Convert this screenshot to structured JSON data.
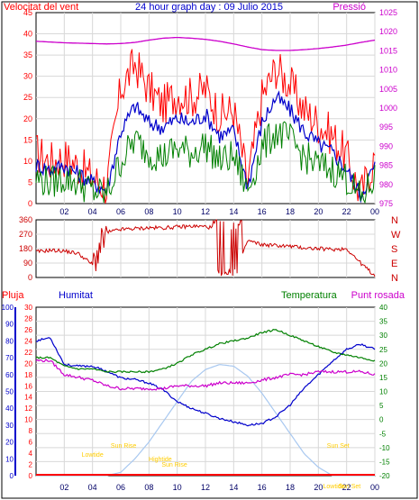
{
  "chart_data": [
    {
      "type": "line",
      "title": "24 hour graph day : 09 Julio 2015",
      "left_label": "Velocitat del vent",
      "right_label": "Pressió",
      "x_ticks": [
        "02",
        "04",
        "06",
        "08",
        "10",
        "12",
        "14",
        "16",
        "18",
        "20",
        "22",
        "00"
      ],
      "ylim_left": [
        0,
        45
      ],
      "yticks_left": [
        "0",
        "5",
        "10",
        "15",
        "20",
        "25",
        "30",
        "35",
        "40",
        "45"
      ],
      "ylim_right": [
        975,
        1025
      ],
      "yticks_right": [
        "975",
        "980",
        "985",
        "990",
        "995",
        "1000",
        "1005",
        "1010",
        "1015",
        "1020",
        "1025"
      ],
      "grid": true,
      "x_hours": [
        0,
        1,
        2,
        3,
        4,
        5,
        6,
        7,
        8,
        9,
        10,
        11,
        12,
        13,
        14,
        15,
        16,
        17,
        18,
        19,
        20,
        21,
        22,
        23,
        24
      ],
      "series": [
        {
          "key": "gust",
          "color": "#ff0000",
          "values": [
            12,
            10,
            11,
            9,
            6,
            4,
            27,
            33,
            27,
            23,
            26,
            25,
            27,
            21,
            22,
            5,
            25,
            32,
            28,
            22,
            19,
            16,
            11,
            2,
            11
          ]
        },
        {
          "key": "avg",
          "color": "#0000cc",
          "values": [
            9,
            8,
            9,
            7,
            5,
            3,
            17,
            23,
            19,
            18,
            20,
            19,
            21,
            16,
            17,
            4,
            19,
            25,
            22,
            17,
            14,
            12,
            8,
            2,
            9
          ]
        },
        {
          "key": "wind",
          "color": "#008000",
          "values": [
            6,
            5,
            6,
            5,
            3,
            2,
            10,
            15,
            12,
            11,
            13,
            12,
            14,
            10,
            11,
            3,
            13,
            17,
            15,
            11,
            9,
            8,
            6,
            1,
            6
          ]
        },
        {
          "key": "pressure",
          "color": "#cc00cc",
          "axis": "right",
          "values": [
            1017.5,
            1017.3,
            1017.1,
            1017.0,
            1016.9,
            1016.8,
            1016.9,
            1017.2,
            1017.8,
            1018.3,
            1018.5,
            1018.3,
            1018.0,
            1017.5,
            1016.8,
            1016.0,
            1015.3,
            1015.1,
            1015.1,
            1015.3,
            1015.6,
            1016.0,
            1016.5,
            1017.2,
            1017.8
          ]
        }
      ]
    },
    {
      "type": "line",
      "title": "",
      "ylim": [
        0,
        360
      ],
      "yticks": [
        "0",
        "90",
        "180",
        "270",
        "360"
      ],
      "compass": [
        "N",
        "W",
        "S",
        "E",
        "N"
      ],
      "x_hours": [
        0,
        1,
        2,
        3,
        4,
        5,
        6,
        7,
        8,
        9,
        10,
        11,
        12,
        13,
        14,
        15,
        16,
        17,
        18,
        19,
        20,
        21,
        22,
        23,
        24
      ],
      "series": [
        {
          "key": "direction",
          "color": "#cc0000",
          "values": [
            160,
            170,
            165,
            150,
            80,
            280,
            300,
            305,
            310,
            310,
            315,
            320,
            318,
            300,
            20,
            230,
            205,
            200,
            195,
            185,
            180,
            175,
            180,
            90,
            10
          ]
        }
      ]
    },
    {
      "type": "line",
      "title": "",
      "labels": {
        "rain": "Pluja",
        "humidity": "Humitat",
        "temperature": "Temperatura",
        "dewpoint": "Punt rosada"
      },
      "yticks_rain": [
        "0",
        "2",
        "4",
        "6",
        "8",
        "10",
        "12",
        "14",
        "16",
        "18",
        "20",
        "22",
        "24",
        "26",
        "28",
        "30"
      ],
      "yticks_humidity": [
        "0",
        "10",
        "20",
        "30",
        "40",
        "50",
        "60",
        "70",
        "80",
        "90",
        "100"
      ],
      "yticks_temperature": [
        "-20",
        "-15",
        "-10",
        "-5",
        "0",
        "5",
        "10",
        "15",
        "20",
        "25",
        "30",
        "35",
        "40"
      ],
      "ylim_rain": [
        0,
        30
      ],
      "ylim_humidity": [
        0,
        100
      ],
      "ylim_temperature": [
        -20,
        40
      ],
      "x_hours": [
        0,
        1,
        2,
        3,
        4,
        5,
        6,
        7,
        8,
        9,
        10,
        11,
        12,
        13,
        14,
        15,
        16,
        17,
        18,
        19,
        20,
        21,
        22,
        23,
        24
      ],
      "series": [
        {
          "key": "humidity",
          "color": "#0000cc",
          "axis": "humidity",
          "values": [
            80,
            82,
            66,
            65,
            65,
            62,
            58,
            57,
            55,
            51,
            44,
            40,
            37,
            34,
            32,
            30,
            31,
            35,
            42,
            52,
            60,
            68,
            75,
            78,
            75
          ]
        },
        {
          "key": "temperature",
          "color": "#008000",
          "axis": "temperature",
          "values": [
            22,
            22,
            19,
            18,
            18,
            17,
            17,
            17,
            17,
            18,
            20,
            23,
            25,
            27,
            28,
            29,
            31,
            32,
            30,
            28,
            26,
            24,
            23,
            22,
            21
          ]
        },
        {
          "key": "dewpoint",
          "color": "#cc00cc",
          "axis": "temperature",
          "values": [
            21,
            21,
            16,
            15,
            14,
            12,
            11,
            11,
            11,
            11,
            12,
            12,
            12,
            13,
            13,
            13,
            14,
            15,
            16,
            16,
            17,
            17,
            17,
            17,
            16
          ]
        },
        {
          "key": "solar",
          "color": "#a8c8f0",
          "axis": "humidity",
          "values": [
            0,
            0,
            0,
            0,
            0,
            0,
            2,
            10,
            20,
            32,
            44,
            56,
            63,
            66,
            65,
            59,
            49,
            37,
            25,
            13,
            5,
            0,
            0,
            0,
            0
          ]
        },
        {
          "key": "rain",
          "color": "#ff0000",
          "axis": "rain",
          "values": [
            0,
            0,
            0,
            0,
            0,
            0,
            0,
            0,
            0,
            0,
            0,
            0,
            0,
            0,
            0,
            0,
            0,
            0,
            0,
            0,
            0,
            0,
            0,
            0,
            0
          ]
        }
      ],
      "annotations": [
        "Sun Rise",
        "Sun Set",
        "Sun Rise",
        "Sun Set",
        "Lowtide",
        "Hightide",
        "Lowtide"
      ]
    }
  ]
}
